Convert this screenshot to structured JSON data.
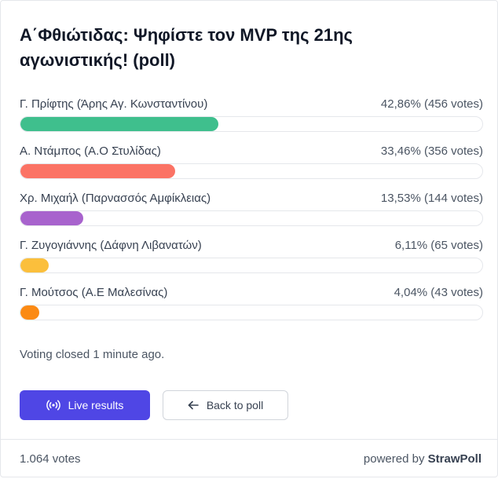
{
  "poll": {
    "title": "Α΄Φθιώτιδας: Ψηφίστε τον MVP της 21ης αγωνιστικής! (poll)",
    "options": [
      {
        "label": "Γ. Πρίφτης (Άρης Αγ. Κωνσταντίνου)",
        "stat": "42,86% (456 votes)",
        "percent": 42.86,
        "color": "#3fbf8d"
      },
      {
        "label": "Α. Ντάμπος (Α.Ο Στυλίδας)",
        "stat": "33,46% (356 votes)",
        "percent": 33.46,
        "color": "#fb7365"
      },
      {
        "label": "Χρ. Μιχαήλ (Παρνασσός Αμφίκλειας)",
        "stat": "13,53% (144 votes)",
        "percent": 13.53,
        "color": "#a863cd"
      },
      {
        "label": "Γ. Ζυγογιάννης (Δάφνη Λιβανατών)",
        "stat": "6,11% (65 votes)",
        "percent": 6.11,
        "color": "#fbbf3c"
      },
      {
        "label": "Γ. Μούτσος (Α.Ε Μαλεσίνας)",
        "stat": "4,04% (43 votes)",
        "percent": 4.04,
        "color": "#fb8a14"
      }
    ],
    "status": "Voting closed 1 minute ago."
  },
  "buttons": {
    "live_label": "Live results",
    "live_icon": "broadcast-icon",
    "back_label": "Back to poll",
    "back_icon": "arrow-left-icon"
  },
  "footer": {
    "votes": "1.064 votes",
    "powered_prefix": "powered by",
    "brand": "StrawPoll"
  },
  "colors": {
    "primary": "#4f46e5"
  }
}
